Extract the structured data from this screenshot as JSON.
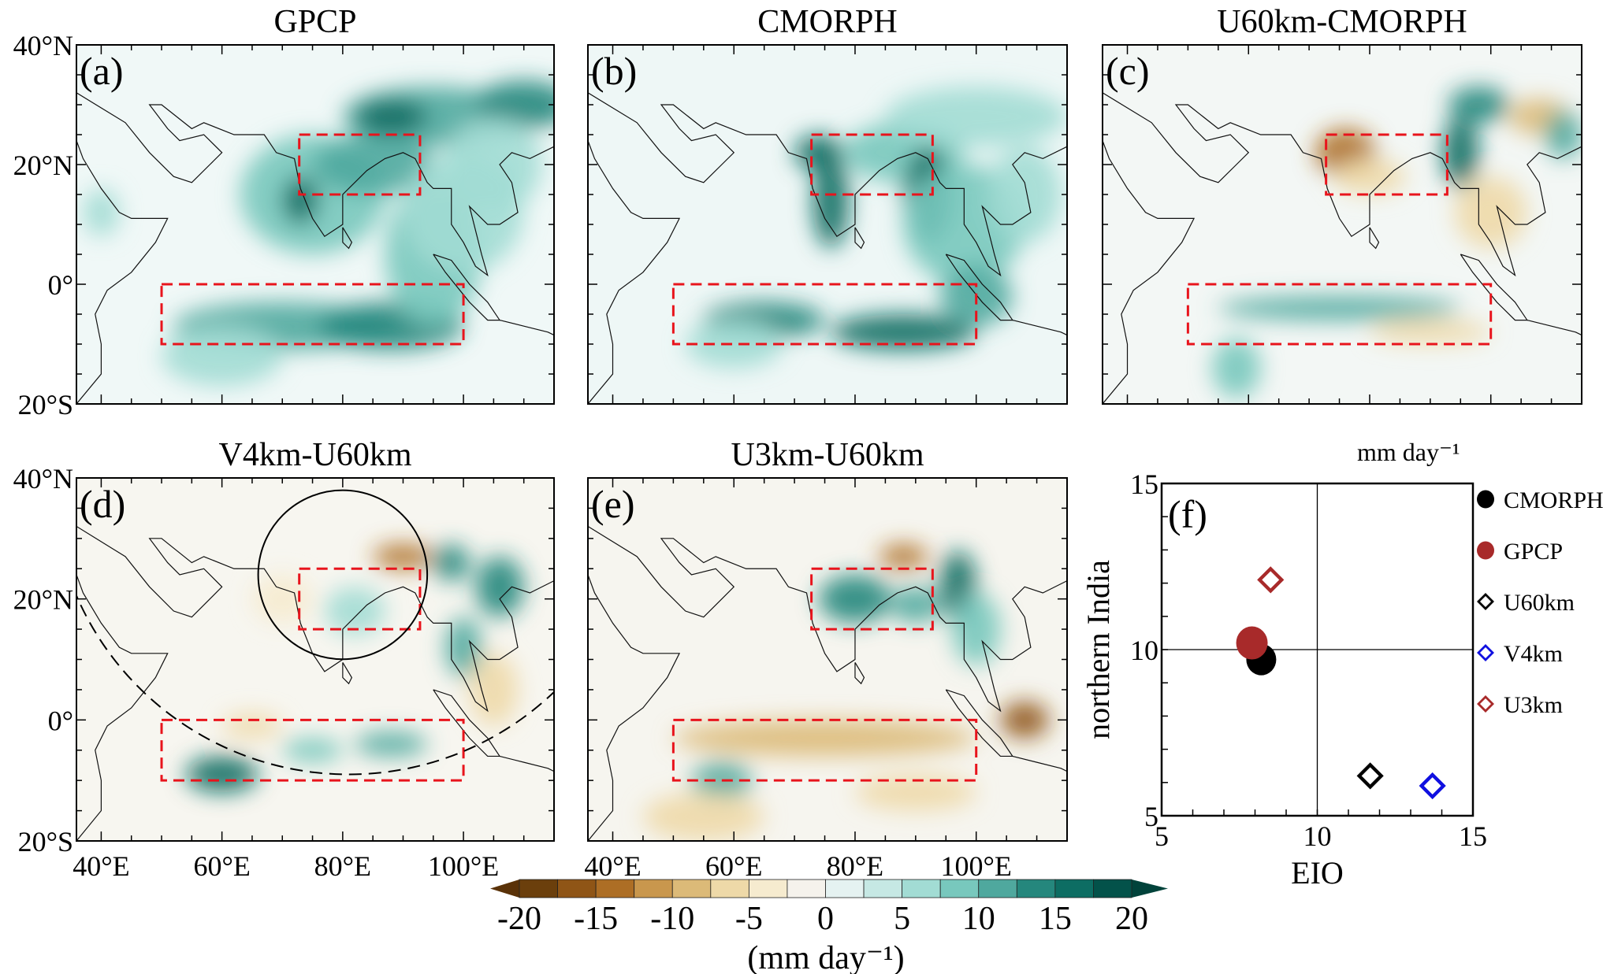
{
  "panels": [
    {
      "id": "a",
      "title": "GPCP",
      "label": "(a)",
      "field": "gpcp"
    },
    {
      "id": "b",
      "title": "CMORPH",
      "label": "(b)",
      "field": "cmorph"
    },
    {
      "id": "c",
      "title": "U60km-CMORPH",
      "label": "(c)",
      "field": "diffc"
    },
    {
      "id": "d",
      "title": "V4km-U60km",
      "label": "(d)",
      "field": "diffd"
    },
    {
      "id": "e",
      "title": "U3km-U60km",
      "label": "(e)",
      "field": "diffe"
    }
  ],
  "lat_ticks": [
    "40°N",
    "20°N",
    "0°",
    "20°S"
  ],
  "lon_ticks": [
    "40°E",
    "60°E",
    "80°E",
    "100°E"
  ],
  "colorbar": {
    "ticks": [
      "-20",
      "-15",
      "-10",
      "-5",
      "0",
      "5",
      "10",
      "15",
      "20"
    ],
    "unit_label": "(mm day⁻¹)",
    "colors": [
      "#6b3f0c",
      "#8f5516",
      "#ad6e25",
      "#c9974d",
      "#dcba78",
      "#eed9a8",
      "#f6ebcf",
      "#f5f2ec",
      "#e5f2f1",
      "#c6e8e4",
      "#a2dcd4",
      "#78c8bd",
      "#4fa89e",
      "#25877d",
      "#0d6d63",
      "#03524a"
    ],
    "low_color": "#5a3208",
    "high_color": "#01433b"
  },
  "chart_data": {
    "type": "scatter",
    "panel_label": "(f)",
    "title": "mm day⁻¹",
    "xlabel": "EIO",
    "ylabel": "northern India",
    "xlim": [
      5,
      15
    ],
    "ylim": [
      5,
      15
    ],
    "xticks": [
      "5",
      "10",
      "15"
    ],
    "yticks": [
      "5",
      "10",
      "15"
    ],
    "reference_lines": {
      "x": 10,
      "y": 10
    },
    "legend_position": "right",
    "series": [
      {
        "name": "CMORPH",
        "x": 8.2,
        "y": 9.7,
        "marker": "filled-circle",
        "color": "#000000"
      },
      {
        "name": "GPCP",
        "x": 7.9,
        "y": 10.2,
        "marker": "filled-circle",
        "color": "#a82a2a"
      },
      {
        "name": "U60km",
        "x": 11.7,
        "y": 6.2,
        "marker": "open-diamond",
        "color": "#000000"
      },
      {
        "name": "V4km",
        "x": 13.7,
        "y": 5.9,
        "marker": "open-diamond",
        "color": "#1010e0"
      },
      {
        "name": "U3km",
        "x": 8.5,
        "y": 12.1,
        "marker": "open-diamond",
        "color": "#a82a2a"
      }
    ]
  }
}
